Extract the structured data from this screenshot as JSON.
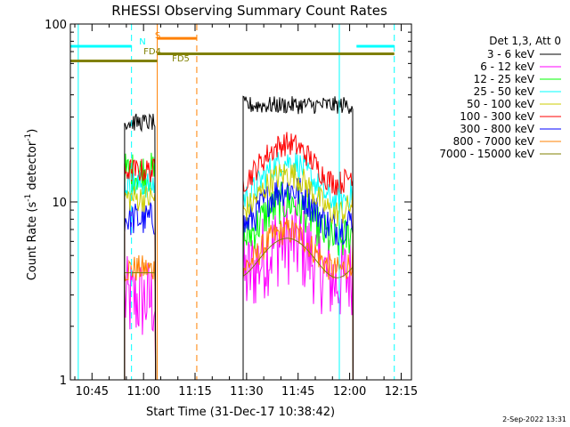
{
  "chart_data": {
    "type": "line",
    "title": "RHESSI Observing Summary Count Rates",
    "xlabel": "Start Time (31-Dec-17 10:38:42)",
    "ylabel_main": "Count Rate (s",
    "ylabel_sup1": "-1",
    "ylabel_mid": " detector",
    "ylabel_sup2": "-1",
    "ylabel_end": ")",
    "footer": "2-Sep-2022 13:31",
    "y_scale": "log",
    "ylim": [
      1,
      100
    ],
    "xlim_minutes": [
      638.7,
      738.0
    ],
    "x_ticks": [
      {
        "label": "10:45",
        "minute": 645
      },
      {
        "label": "11:00",
        "minute": 660
      },
      {
        "label": "11:15",
        "minute": 675
      },
      {
        "label": "11:30",
        "minute": 690
      },
      {
        "label": "11:45",
        "minute": 705
      },
      {
        "label": "12:00",
        "minute": 720
      },
      {
        "label": "12:15",
        "minute": 735
      }
    ],
    "y_ticks": [
      {
        "label": "1",
        "value": 1
      },
      {
        "label": "10",
        "value": 10
      },
      {
        "label": "100",
        "value": 100
      }
    ],
    "legend_title": "Det 1,3, Att 0",
    "legend_position": "right",
    "data_windows_minutes": [
      [
        654.5,
        663.5
      ],
      [
        689.0,
        721.0
      ]
    ],
    "series": [
      {
        "name": "3 - 6 keV",
        "color": "#000000",
        "level_window1": 28,
        "level_window2": 35,
        "noise": 0.05
      },
      {
        "name": "6 - 12 keV",
        "color": "#ff00ff",
        "level_window1": 2.8,
        "level_window2": 4.8,
        "noise": 0.25
      },
      {
        "name": "12 - 25 keV",
        "color": "#00ff00",
        "level_window1": 14.5,
        "level_window2": 8.0,
        "noise": 0.12
      },
      {
        "name": "25 - 50 keV",
        "color": "#00ffff",
        "level_window1": 12.5,
        "level_window2": 13.5,
        "noise": 0.08
      },
      {
        "name": "50 - 100 keV",
        "color": "#cccc00",
        "level_window1": 10.5,
        "level_window2": 11.5,
        "noise": 0.08
      },
      {
        "name": "100 - 300 keV",
        "color": "#ff0000",
        "level_window1": 15.0,
        "level_window2": 17.0,
        "noise": 0.07
      },
      {
        "name": "300 - 800 keV",
        "color": "#0000ff",
        "level_window1": 8.0,
        "level_window2": 9.5,
        "noise": 0.1
      },
      {
        "name": "800 - 7000 keV",
        "color": "#ff8000",
        "level_window1": 4.2,
        "level_window2": 5.5,
        "noise": 0.08
      },
      {
        "name": "7000 - 15000 keV",
        "color": "#808000",
        "level_window1": 4.0,
        "level_window2": 5.0,
        "noise": 0.0
      }
    ],
    "flag_bars": [
      {
        "label": "N",
        "color": "#00ffff",
        "y": 75,
        "segments": [
          [
            638.7,
            656.5
          ],
          [
            722.0,
            733.0
          ]
        ]
      },
      {
        "label": "S",
        "color": "#ff8000",
        "y": 83,
        "segments": [
          [
            664.0,
            675.5
          ]
        ]
      },
      {
        "label": "FD4",
        "color": "#808000",
        "y": 68,
        "segments": [
          [
            664.0,
            733.0
          ]
        ]
      },
      {
        "label": "FD5",
        "color": "#808000",
        "y": 62,
        "segments": [
          [
            638.7,
            664.0
          ]
        ]
      }
    ],
    "vertical_markers": [
      {
        "minute": 641.0,
        "color": "#00ffff",
        "style": "solid"
      },
      {
        "minute": 656.5,
        "color": "#00ffff",
        "style": "dashed"
      },
      {
        "minute": 664.0,
        "color": "#ff8000",
        "style": "solid"
      },
      {
        "minute": 675.5,
        "color": "#ff8000",
        "style": "dashed"
      },
      {
        "minute": 717.0,
        "color": "#00ffff",
        "style": "solid"
      },
      {
        "minute": 733.0,
        "color": "#00ffff",
        "style": "dashed"
      }
    ]
  }
}
